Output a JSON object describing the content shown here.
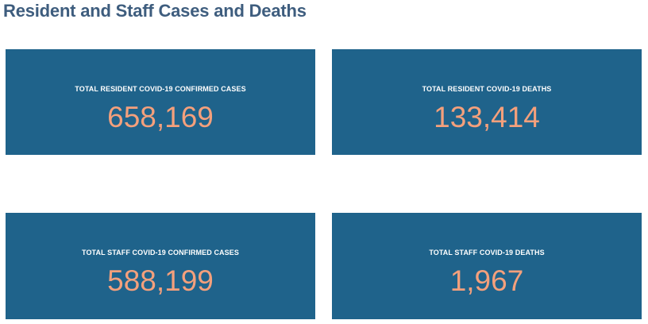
{
  "page": {
    "title": "Resident and Staff Cases and Deaths"
  },
  "colors": {
    "title": "#3e5d7e",
    "card_background": "#1f638b",
    "label_text": "#ffffff",
    "value_text": "#f4a07c"
  },
  "cards": [
    {
      "label": "TOTAL RESIDENT COVID-19 CONFIRMED CASES",
      "value": "658,169"
    },
    {
      "label": "TOTAL RESIDENT COVID-19 DEATHS",
      "value": "133,414"
    },
    {
      "label": "TOTAL STAFF COVID-19 CONFIRMED CASES",
      "value": "588,199"
    },
    {
      "label": "TOTAL STAFF COVID-19 DEATHS",
      "value": "1,967"
    }
  ]
}
